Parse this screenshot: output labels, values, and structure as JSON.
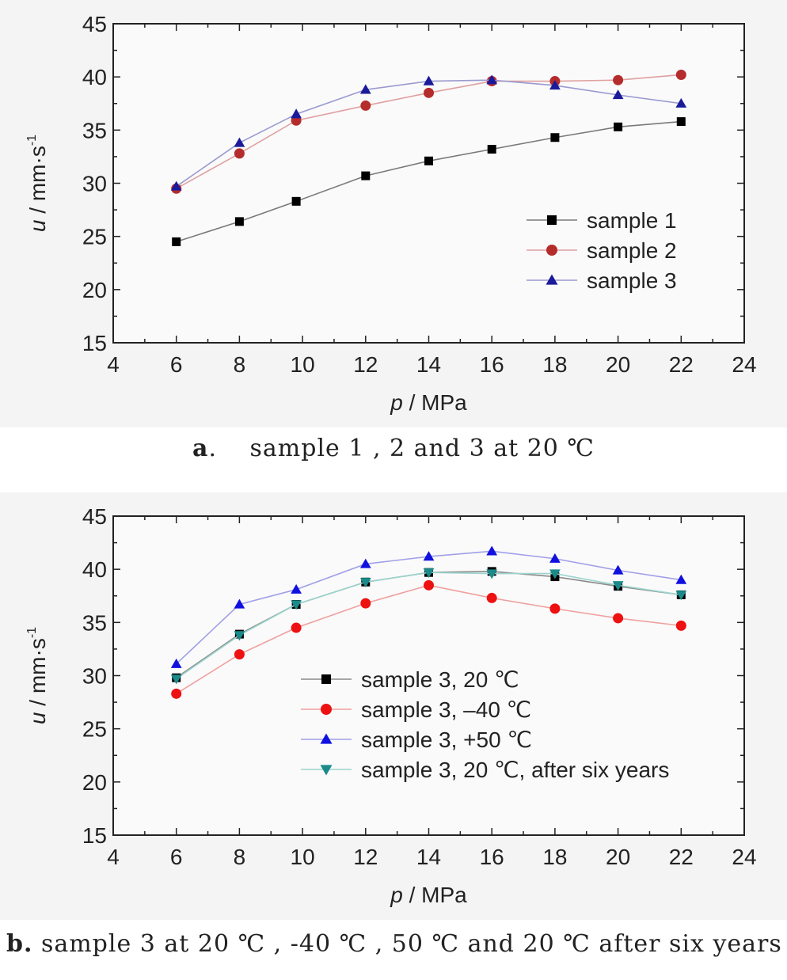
{
  "chart_data": [
    {
      "type": "line",
      "xlabel_var": "p",
      "xlabel_unit": "/ MPa",
      "ylabel_var": "u",
      "ylabel_unit": "/ mm·s",
      "ylabel_exp": "-1",
      "xlim": [
        4,
        24
      ],
      "ylim": [
        15,
        45
      ],
      "xticks": [
        "4",
        "6",
        "8",
        "10",
        "12",
        "14",
        "16",
        "18",
        "20",
        "22",
        "24"
      ],
      "yticks": [
        "15",
        "20",
        "25",
        "30",
        "35",
        "40",
        "45"
      ],
      "legend_position": "bottom-right",
      "x": [
        6,
        8,
        9.8,
        12,
        14,
        16,
        18,
        20,
        22
      ],
      "series": [
        {
          "name": "sample 1",
          "marker": "square",
          "color": "#000000",
          "line": "#7a7a7a",
          "values": [
            24.5,
            26.4,
            28.3,
            30.7,
            32.1,
            33.2,
            34.3,
            35.3,
            35.8
          ]
        },
        {
          "name": "sample 2",
          "marker": "circle",
          "color": "#b52c2c",
          "line": "#e0a0a0",
          "values": [
            29.5,
            32.8,
            35.9,
            37.3,
            38.5,
            39.6,
            39.6,
            39.7,
            40.2
          ]
        },
        {
          "name": "sample 3",
          "marker": "triangle-up",
          "color": "#1a1a9a",
          "line": "#9a9ad0",
          "values": [
            29.7,
            33.8,
            36.5,
            38.8,
            39.6,
            39.7,
            39.2,
            38.3,
            37.5
          ]
        }
      ]
    },
    {
      "type": "line",
      "xlabel_var": "p",
      "xlabel_unit": "/ MPa",
      "ylabel_var": "u",
      "ylabel_unit": "/ mm·s",
      "ylabel_exp": "-1",
      "xlim": [
        4,
        24
      ],
      "ylim": [
        15,
        45
      ],
      "xticks": [
        "4",
        "6",
        "8",
        "10",
        "12",
        "14",
        "16",
        "18",
        "20",
        "22",
        "24"
      ],
      "yticks": [
        "15",
        "20",
        "25",
        "30",
        "35",
        "40",
        "45"
      ],
      "legend_position": "bottom-center",
      "x": [
        6,
        8,
        9.8,
        12,
        14,
        16,
        18,
        20,
        22
      ],
      "series": [
        {
          "name": "sample 3, 20 ℃",
          "marker": "square",
          "color": "#000000",
          "line": "#8a8a8a",
          "values": [
            29.8,
            33.9,
            36.7,
            38.8,
            39.7,
            39.8,
            39.3,
            38.4,
            37.6
          ]
        },
        {
          "name": "sample 3, –40 ℃",
          "marker": "circle",
          "color": "#ee1111",
          "line": "#f0a0a0",
          "values": [
            28.3,
            32.0,
            34.5,
            36.8,
            38.5,
            37.3,
            36.3,
            35.4,
            34.7
          ]
        },
        {
          "name": "sample 3, +50 ℃",
          "marker": "triangle-up",
          "color": "#1010e0",
          "line": "#a0a0e8",
          "values": [
            31.1,
            36.7,
            38.1,
            40.5,
            41.2,
            41.7,
            41.0,
            39.9,
            39.0
          ]
        },
        {
          "name": "sample 3, 20 ℃, after six years",
          "marker": "triangle-down",
          "color": "#1a8a8a",
          "line": "#9ad4cc",
          "values": [
            29.7,
            33.8,
            36.7,
            38.8,
            39.7,
            39.6,
            39.6,
            38.5,
            37.6
          ]
        }
      ]
    }
  ],
  "captions": [
    {
      "letter": "a",
      "text": ".　  sample 1 , 2 and 3 at 20 ℃"
    },
    {
      "letter": "b.",
      "text": "  sample 3 at 20 ℃ , -40 ℃ , 50 ℃ and 20 ℃ after six years"
    }
  ]
}
